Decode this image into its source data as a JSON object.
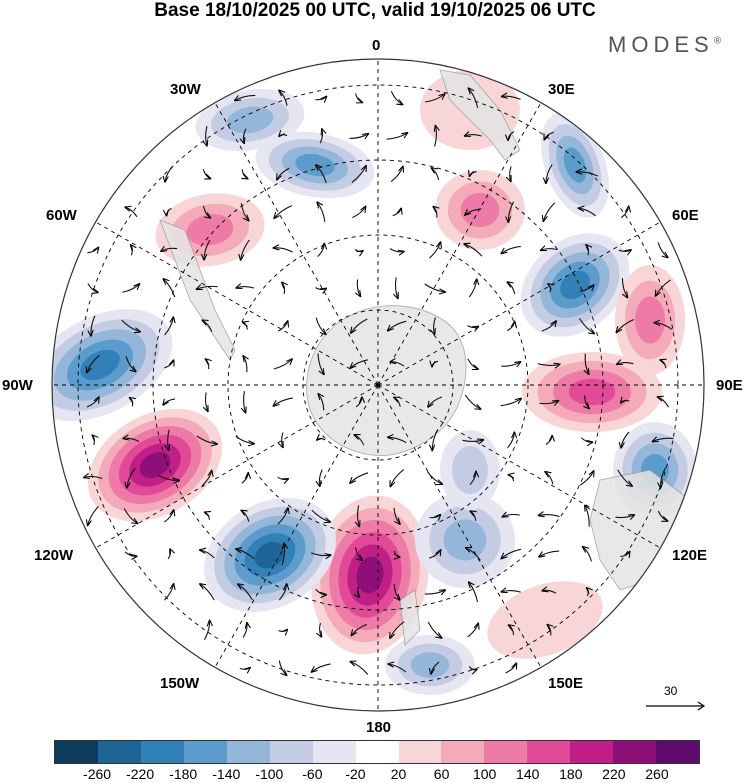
{
  "header": {
    "title": "Base 18/10/2025 00 UTC, valid 19/10/2025 06 UTC",
    "brand": "MODES",
    "brand_mark": "®"
  },
  "map": {
    "projection": "south polar stereographic",
    "longitude_labels": {
      "n0": "0",
      "n30e": "30E",
      "n60e": "60E",
      "n90e": "90E",
      "n120e": "120E",
      "n150e": "150E",
      "n180": "180",
      "n150w": "150W",
      "n120w": "120W",
      "n90w": "90W",
      "n60w": "60W",
      "n30w": "30W"
    },
    "wind_reference": {
      "value": "30"
    },
    "land_color": "#e4e4e4"
  },
  "colorbar": {
    "colors": [
      "#0d3b5c",
      "#1d6595",
      "#3181b8",
      "#5b9ccc",
      "#94b6d8",
      "#c4cce4",
      "#e6e6f2",
      "#ffffff",
      "#f8d6d8",
      "#f4aab8",
      "#ee7aa7",
      "#e24a98",
      "#c01f88",
      "#8e0f78",
      "#5e0a6e"
    ],
    "labels": [
      "-260",
      "-220",
      "-180",
      "-140",
      "-100",
      "-60",
      "-20",
      "20",
      "60",
      "100",
      "140",
      "180",
      "220",
      "260"
    ]
  }
}
